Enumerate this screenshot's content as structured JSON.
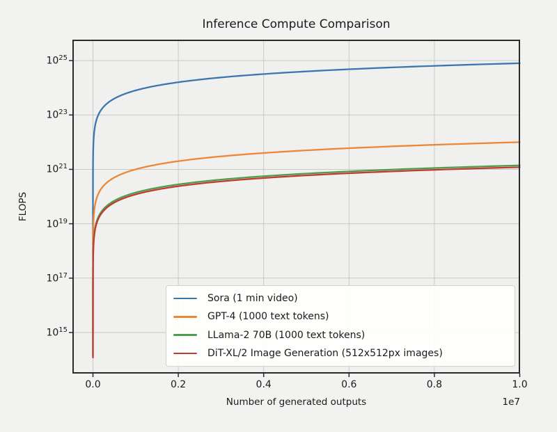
{
  "colors": {
    "figure_bg": "#f2f2f1",
    "axes_bg": "#f0f0ee",
    "grid": "#c8c8c6",
    "spine": "#2a2a2a",
    "tick": "#2a2a2a",
    "text": "#1a1a1a",
    "legend_bg": "#fcfcfb",
    "legend_border": "#d2d2d0"
  },
  "chart_data": {
    "type": "line",
    "title": "Inference Compute Comparison",
    "xlabel": "Number of generated outputs",
    "ylabel": "FLOPS",
    "grid": true,
    "legend_position": "lower center, inside axes",
    "x_axis": {
      "scale": "linear",
      "min": 0,
      "max": 10000000,
      "offset_text": "1e7",
      "ticks": [
        0,
        2000000,
        4000000,
        6000000,
        8000000,
        10000000
      ],
      "tick_labels": [
        "0.0",
        "0.2",
        "0.4",
        "0.6",
        "0.8",
        "1.0"
      ]
    },
    "y_axis": {
      "scale": "log",
      "tick_exponents": [
        15,
        17,
        19,
        21,
        23,
        25
      ],
      "tick_base_label": "10",
      "ylim_log10": [
        13.49,
        25.77
      ]
    },
    "formula": "total_flops = per_output_flops * N, plotted for N from 1 to 1e7",
    "series": [
      {
        "name": "Sora (1 min video)",
        "color": "#3b76af",
        "per_output_flops": 8e+17,
        "points": [
          [
            1,
            8e+17
          ],
          [
            100000,
            8e+22
          ],
          [
            1000000,
            8e+23
          ],
          [
            2000000,
            1.6e+24
          ],
          [
            5000000,
            4e+24
          ],
          [
            10000000,
            8e+24
          ]
        ]
      },
      {
        "name": "GPT-4 (1000 text tokens)",
        "color": "#ee8634",
        "per_output_flops": 1000000000000000.0,
        "points": [
          [
            1,
            1000000000000000.0
          ],
          [
            100000,
            1e+20
          ],
          [
            1000000,
            1e+21
          ],
          [
            2000000,
            2e+21
          ],
          [
            5000000,
            5e+21
          ],
          [
            10000000,
            1e+22
          ]
        ]
      },
      {
        "name": "LLama-2 70B (1000 text tokens)",
        "color": "#4e9d4f",
        "per_output_flops": 140000000000000.0,
        "points": [
          [
            1,
            140000000000000.0
          ],
          [
            100000,
            1.4e+19
          ],
          [
            1000000,
            1.4e+20
          ],
          [
            2000000,
            2.8e+20
          ],
          [
            5000000,
            7e+20
          ],
          [
            10000000,
            1.4e+21
          ]
        ]
      },
      {
        "name": "DiT-XL/2 Image Generation (512x512px images)",
        "color": "#c23b33",
        "per_output_flops": 120000000000000.0,
        "points": [
          [
            1,
            120000000000000.0
          ],
          [
            100000,
            1.2e+19
          ],
          [
            1000000,
            1.2e+20
          ],
          [
            2000000,
            2.4e+20
          ],
          [
            5000000,
            6e+20
          ],
          [
            10000000,
            1.2e+21
          ]
        ]
      }
    ]
  }
}
